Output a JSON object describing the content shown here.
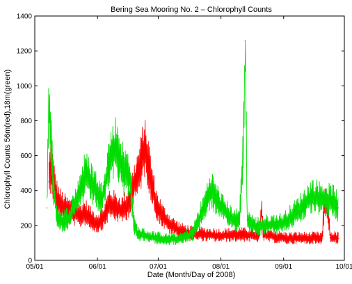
{
  "chart_data": {
    "type": "line",
    "title": "Bering Sea Mooring No. 2 – Chlorophyll Counts",
    "xlabel": "Date (Month/Day of 2008)",
    "ylabel": "Chlorophyll Counts 56m(red),18m(green)",
    "x_ticks": [
      "05/01",
      "06/01",
      "07/01",
      "08/01",
      "09/01",
      "10/01"
    ],
    "y_ticks": [
      "0",
      "200",
      "400",
      "600",
      "800",
      "1000",
      "1200",
      "1400"
    ],
    "xlim": [
      "2008-05-01",
      "2008-10-01"
    ],
    "ylim": [
      0,
      1400
    ],
    "grid": false,
    "series": [
      {
        "color": "#ff0000",
        "x": [
          "2008-05-08",
          "2008-05-09",
          "2008-05-10",
          "2008-05-12",
          "2008-05-14",
          "2008-05-17",
          "2008-05-20",
          "2008-05-23",
          "2008-05-26",
          "2008-05-29",
          "2008-06-01",
          "2008-06-04",
          "2008-06-07",
          "2008-06-10",
          "2008-06-13",
          "2008-06-16",
          "2008-06-19",
          "2008-06-22",
          "2008-06-24",
          "2008-06-26",
          "2008-06-28",
          "2008-06-30",
          "2008-07-03",
          "2008-07-07",
          "2008-07-12",
          "2008-07-18",
          "2008-07-25",
          "2008-08-01",
          "2008-08-10",
          "2008-08-20",
          "2008-08-21",
          "2008-08-22",
          "2008-09-01",
          "2008-09-10",
          "2008-09-20",
          "2008-09-21",
          "2008-09-22",
          "2008-09-23",
          "2008-09-24",
          "2008-09-28"
        ],
        "values": [
          450,
          560,
          460,
          350,
          310,
          280,
          270,
          250,
          270,
          230,
          210,
          240,
          320,
          300,
          280,
          320,
          420,
          520,
          640,
          560,
          420,
          320,
          250,
          200,
          165,
          150,
          145,
          140,
          145,
          140,
          280,
          145,
          125,
          125,
          125,
          300,
          330,
          280,
          130,
          125
        ]
      },
      {
        "color": "#00dd00",
        "x": [
          "2008-05-07",
          "2008-05-08",
          "2008-05-09",
          "2008-05-10",
          "2008-05-12",
          "2008-05-15",
          "2008-05-18",
          "2008-05-22",
          "2008-05-26",
          "2008-05-30",
          "2008-06-03",
          "2008-06-07",
          "2008-06-10",
          "2008-06-14",
          "2008-06-17",
          "2008-06-19",
          "2008-06-21",
          "2008-06-24",
          "2008-06-28",
          "2008-07-05",
          "2008-07-12",
          "2008-07-18",
          "2008-07-23",
          "2008-07-27",
          "2008-08-01",
          "2008-08-06",
          "2008-08-10",
          "2008-08-12",
          "2008-08-13",
          "2008-08-14",
          "2008-08-18",
          "2008-08-25",
          "2008-09-01",
          "2008-09-08",
          "2008-09-15",
          "2008-09-22",
          "2008-09-26",
          "2008-09-28"
        ],
        "values": [
          300,
          950,
          700,
          450,
          250,
          220,
          240,
          350,
          480,
          420,
          340,
          560,
          650,
          500,
          480,
          200,
          150,
          140,
          130,
          120,
          120,
          150,
          280,
          400,
          300,
          240,
          220,
          600,
          1260,
          230,
          190,
          200,
          210,
          280,
          360,
          340,
          330,
          300
        ]
      }
    ]
  }
}
